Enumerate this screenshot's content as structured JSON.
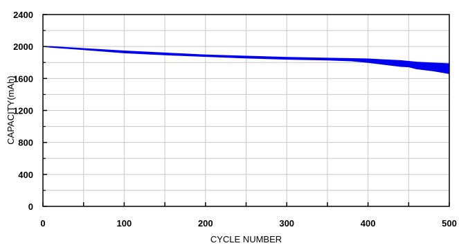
{
  "chart_data": {
    "type": "area",
    "title": "",
    "xlabel": "CYCLE NUMBER",
    "ylabel": "CAPACITY(mAh)",
    "xlim": [
      0,
      500
    ],
    "ylim": [
      0,
      2400
    ],
    "x_ticks": [
      0,
      100,
      200,
      300,
      400,
      500
    ],
    "x_tick_labels": [
      "0",
      "100",
      "200",
      "300",
      "400",
      "500"
    ],
    "x_minor_ticks": [
      50,
      150,
      250,
      350,
      450
    ],
    "y_ticks": [
      0,
      400,
      800,
      1200,
      1600,
      2000,
      2400
    ],
    "y_tick_labels": [
      "0",
      "400",
      "800",
      "1200",
      "1600",
      "2000",
      "2400"
    ],
    "y_minor_ticks": [
      200,
      600,
      1000,
      1400,
      1800,
      2200
    ],
    "grid": true,
    "legend": "none",
    "band_color": "#0000ee",
    "series": [
      {
        "x": [
          0,
          10,
          50,
          100,
          150,
          200,
          250,
          300,
          350,
          380,
          400,
          420,
          440,
          450,
          460,
          480,
          500
        ],
        "upper": [
          2000,
          2000,
          1975,
          1945,
          1920,
          1895,
          1880,
          1865,
          1855,
          1850,
          1845,
          1835,
          1825,
          1815,
          1805,
          1795,
          1785
        ],
        "lower": [
          2000,
          1990,
          1960,
          1920,
          1895,
          1875,
          1855,
          1840,
          1830,
          1820,
          1800,
          1775,
          1750,
          1745,
          1720,
          1695,
          1660
        ]
      }
    ]
  }
}
